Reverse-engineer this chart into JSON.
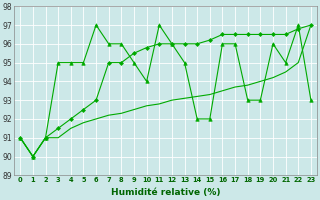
{
  "xlabel": "Humidité relative (%)",
  "bg_color": "#cce8e8",
  "grid_color": "#b0d8d8",
  "line_color": "#00aa00",
  "x_min": -0.5,
  "x_max": 23.5,
  "y_min": 89,
  "y_max": 98,
  "yticks": [
    89,
    90,
    91,
    92,
    93,
    94,
    95,
    96,
    97,
    98
  ],
  "xticks": [
    0,
    1,
    2,
    3,
    4,
    5,
    6,
    7,
    8,
    9,
    10,
    11,
    12,
    13,
    14,
    15,
    16,
    17,
    18,
    19,
    20,
    21,
    22,
    23
  ],
  "line1_x": [
    0,
    1,
    2,
    3,
    4,
    5,
    6,
    7,
    8,
    9,
    10,
    11,
    12,
    13,
    14,
    15,
    16,
    17,
    18,
    19,
    20,
    21,
    22,
    23
  ],
  "line1_y": [
    91,
    90,
    91,
    95,
    95,
    95,
    97,
    96,
    96,
    95,
    94,
    97,
    96,
    95,
    92,
    92,
    96,
    96,
    93,
    93,
    96,
    95,
    97,
    93
  ],
  "line2_x": [
    0,
    1,
    2,
    3,
    4,
    5,
    6,
    7,
    8,
    9,
    10,
    11,
    12,
    13,
    14,
    15,
    16,
    17,
    18,
    19,
    20,
    21,
    22,
    23
  ],
  "line2_y": [
    91,
    90,
    91,
    91,
    91.5,
    91.8,
    92,
    92.2,
    92.3,
    92.5,
    92.7,
    92.8,
    93,
    93.1,
    93.2,
    93.3,
    93.5,
    93.7,
    93.8,
    94,
    94.2,
    94.5,
    95,
    97
  ],
  "line3_x": [
    0,
    1,
    2,
    3,
    4,
    5,
    6,
    7,
    8,
    9,
    10,
    11,
    12,
    13,
    14,
    15,
    16,
    17,
    18,
    19,
    20,
    21,
    22,
    23
  ],
  "line3_y": [
    91,
    90,
    91,
    91.5,
    92,
    92.5,
    93,
    95,
    95,
    95.5,
    95.8,
    96,
    96,
    96,
    96,
    96.2,
    96.5,
    96.5,
    96.5,
    96.5,
    96.5,
    96.5,
    96.8,
    97
  ]
}
